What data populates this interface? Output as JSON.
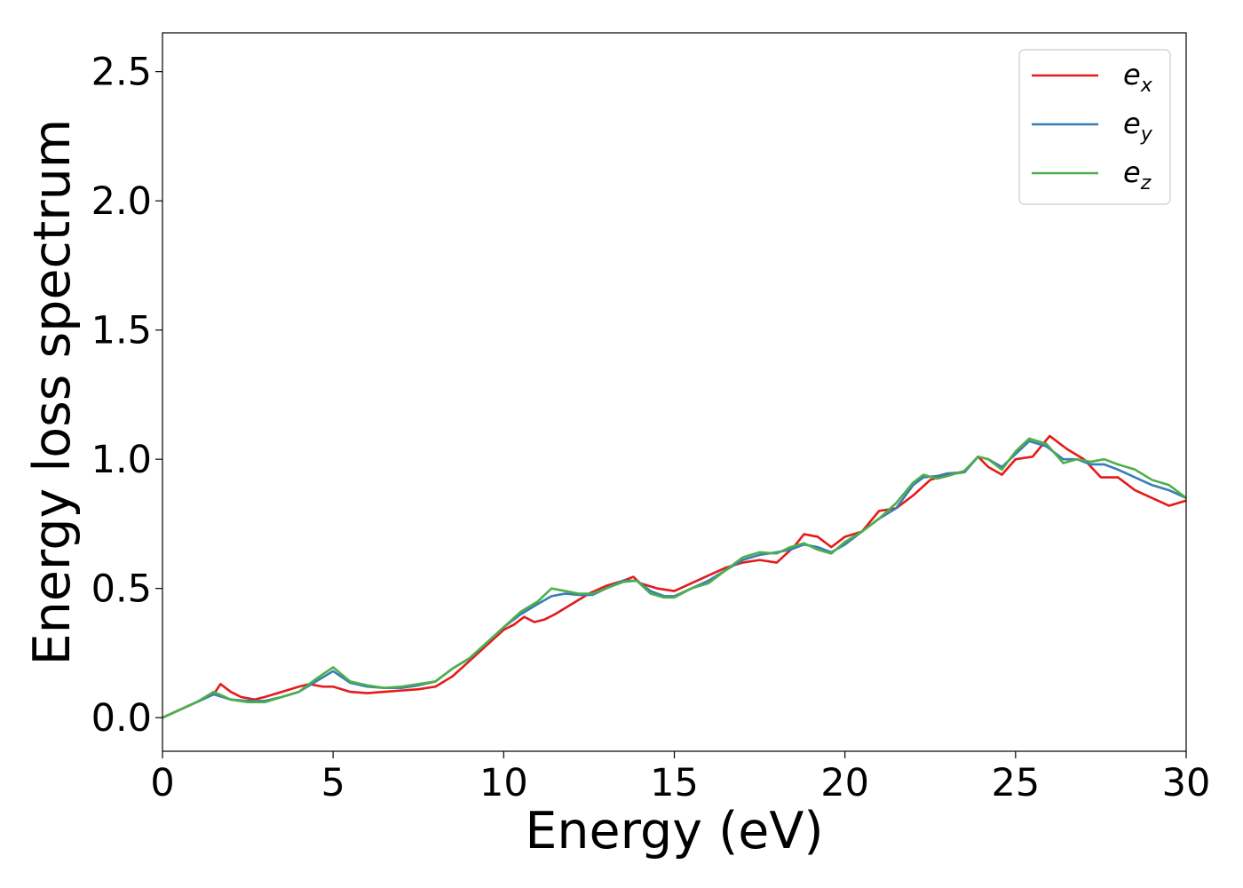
{
  "chart_data": {
    "type": "line",
    "title": "",
    "xlabel": "Energy (eV)",
    "ylabel": "Energy loss spectrum",
    "xlim": [
      0,
      30
    ],
    "ylim": [
      -0.13,
      2.65
    ],
    "xticks": [
      0,
      5,
      10,
      15,
      20,
      25,
      30
    ],
    "xtick_labels": [
      "0",
      "5",
      "10",
      "15",
      "20",
      "25",
      "30"
    ],
    "yticks": [
      0.0,
      0.5,
      1.0,
      1.5,
      2.0,
      2.5
    ],
    "ytick_labels": [
      "0.0",
      "0.5",
      "1.0",
      "1.5",
      "2.0",
      "2.5"
    ],
    "grid": false,
    "legend_position": "top-right",
    "series": [
      {
        "name": "e_x",
        "label_main": "e",
        "label_sub": "x",
        "color": "#e41a1c",
        "x": [
          0,
          0.5,
          1.0,
          1.5,
          1.7,
          2.0,
          2.3,
          2.7,
          3.0,
          3.5,
          4.0,
          4.3,
          4.7,
          5.0,
          5.5,
          6.0,
          6.5,
          7.0,
          7.5,
          8.0,
          8.5,
          9.0,
          9.5,
          10.0,
          10.3,
          10.6,
          10.9,
          11.2,
          11.5,
          12.0,
          12.5,
          13.0,
          13.5,
          13.8,
          14.0,
          14.5,
          15.0,
          15.5,
          16.0,
          16.5,
          17.0,
          17.5,
          18.0,
          18.5,
          18.8,
          19.2,
          19.6,
          20.0,
          20.5,
          21.0,
          21.5,
          22.0,
          22.5,
          23.0,
          23.5,
          23.9,
          24.2,
          24.6,
          25.0,
          25.5,
          26.0,
          26.5,
          27.0,
          27.5,
          28.0,
          28.5,
          29.0,
          29.5,
          30.0
        ],
        "y": [
          0.0,
          0.03,
          0.06,
          0.09,
          0.13,
          0.1,
          0.08,
          0.07,
          0.08,
          0.1,
          0.12,
          0.13,
          0.12,
          0.12,
          0.1,
          0.095,
          0.1,
          0.105,
          0.11,
          0.12,
          0.16,
          0.22,
          0.28,
          0.34,
          0.36,
          0.39,
          0.37,
          0.38,
          0.4,
          0.44,
          0.48,
          0.51,
          0.53,
          0.545,
          0.52,
          0.5,
          0.49,
          0.52,
          0.55,
          0.58,
          0.6,
          0.61,
          0.6,
          0.66,
          0.71,
          0.7,
          0.66,
          0.7,
          0.72,
          0.8,
          0.81,
          0.86,
          0.92,
          0.94,
          0.95,
          1.01,
          0.97,
          0.94,
          1.0,
          1.01,
          1.09,
          1.04,
          1.0,
          0.93,
          0.93,
          0.88,
          0.85,
          0.82,
          0.84
        ]
      },
      {
        "name": "e_y",
        "label_main": "e",
        "label_sub": "y",
        "color": "#377eb8",
        "x": [
          0,
          0.5,
          1.0,
          1.5,
          2.0,
          2.5,
          3.0,
          3.5,
          4.0,
          4.5,
          5.0,
          5.5,
          6.0,
          6.5,
          7.0,
          7.5,
          8.0,
          8.5,
          9.0,
          9.5,
          10.0,
          10.5,
          11.0,
          11.4,
          11.8,
          12.2,
          12.6,
          13.0,
          13.5,
          13.9,
          14.3,
          14.7,
          15.0,
          15.5,
          16.0,
          16.5,
          17.0,
          17.5,
          18.0,
          18.4,
          18.8,
          19.2,
          19.6,
          20.0,
          20.5,
          21.0,
          21.5,
          22.0,
          22.3,
          22.7,
          23.0,
          23.5,
          23.9,
          24.2,
          24.6,
          25.0,
          25.4,
          25.9,
          26.4,
          26.8,
          27.2,
          27.6,
          28.0,
          28.5,
          29.0,
          29.5,
          30.0
        ],
        "y": [
          0.0,
          0.03,
          0.06,
          0.09,
          0.07,
          0.065,
          0.065,
          0.08,
          0.1,
          0.14,
          0.18,
          0.135,
          0.12,
          0.115,
          0.115,
          0.125,
          0.14,
          0.19,
          0.23,
          0.29,
          0.35,
          0.4,
          0.44,
          0.47,
          0.48,
          0.475,
          0.475,
          0.5,
          0.53,
          0.53,
          0.49,
          0.47,
          0.47,
          0.5,
          0.53,
          0.57,
          0.61,
          0.63,
          0.64,
          0.65,
          0.67,
          0.66,
          0.64,
          0.67,
          0.72,
          0.77,
          0.81,
          0.9,
          0.93,
          0.935,
          0.945,
          0.95,
          1.01,
          1.0,
          0.97,
          1.02,
          1.07,
          1.05,
          1.0,
          1.0,
          0.98,
          0.98,
          0.96,
          0.93,
          0.9,
          0.88,
          0.85
        ]
      },
      {
        "name": "e_z",
        "label_main": "e",
        "label_sub": "z",
        "color": "#4daf4a",
        "x": [
          0,
          0.5,
          1.0,
          1.5,
          2.0,
          2.5,
          3.0,
          3.5,
          4.0,
          4.5,
          5.0,
          5.5,
          6.0,
          6.5,
          7.0,
          7.5,
          8.0,
          8.5,
          9.0,
          9.5,
          10.0,
          10.5,
          11.0,
          11.4,
          11.8,
          12.2,
          12.6,
          13.0,
          13.5,
          13.9,
          14.3,
          14.7,
          15.0,
          15.5,
          16.0,
          16.5,
          17.0,
          17.5,
          18.0,
          18.4,
          18.8,
          19.2,
          19.6,
          20.0,
          20.5,
          21.0,
          21.5,
          22.0,
          22.3,
          22.7,
          23.0,
          23.5,
          23.9,
          24.2,
          24.6,
          25.0,
          25.4,
          25.9,
          26.4,
          26.8,
          27.2,
          27.6,
          28.0,
          28.5,
          29.0,
          29.5,
          30.0
        ],
        "y": [
          0.0,
          0.03,
          0.06,
          0.1,
          0.07,
          0.06,
          0.06,
          0.08,
          0.1,
          0.15,
          0.195,
          0.14,
          0.125,
          0.115,
          0.12,
          0.13,
          0.14,
          0.19,
          0.23,
          0.29,
          0.35,
          0.41,
          0.45,
          0.5,
          0.49,
          0.48,
          0.48,
          0.5,
          0.525,
          0.53,
          0.48,
          0.465,
          0.465,
          0.5,
          0.52,
          0.57,
          0.62,
          0.64,
          0.635,
          0.66,
          0.675,
          0.65,
          0.635,
          0.68,
          0.72,
          0.77,
          0.83,
          0.91,
          0.94,
          0.925,
          0.935,
          0.955,
          1.01,
          1.0,
          0.96,
          1.03,
          1.08,
          1.06,
          0.985,
          1.0,
          0.99,
          1.0,
          0.98,
          0.96,
          0.92,
          0.9,
          0.85
        ]
      }
    ]
  }
}
